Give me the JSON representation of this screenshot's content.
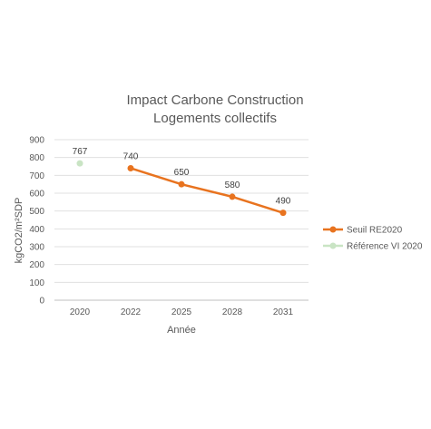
{
  "chart_data": {
    "type": "line",
    "title_line1": "Impact Carbone Construction",
    "title_line2": "Logements collectifs",
    "xlabel": "Année",
    "ylabel": "kgCO2/m²SDP",
    "categories": [
      "2020",
      "2022",
      "2025",
      "2028",
      "2031"
    ],
    "ylim": [
      0,
      900
    ],
    "yticks": [
      "0",
      "100",
      "200",
      "300",
      "400",
      "500",
      "600",
      "700",
      "800",
      "900"
    ],
    "grid": true,
    "legend_position": "right",
    "series": [
      {
        "name": "Seuil RE2020",
        "color": "#E8731F",
        "values": [
          null,
          740,
          650,
          580,
          490
        ],
        "labels": [
          "",
          "740",
          "650",
          "580",
          "490"
        ]
      },
      {
        "name": "Référence VI 2020",
        "color": "#C9E4C4",
        "values": [
          767,
          null,
          null,
          null,
          null
        ],
        "labels": [
          "767",
          "",
          "",
          "",
          ""
        ]
      }
    ]
  }
}
